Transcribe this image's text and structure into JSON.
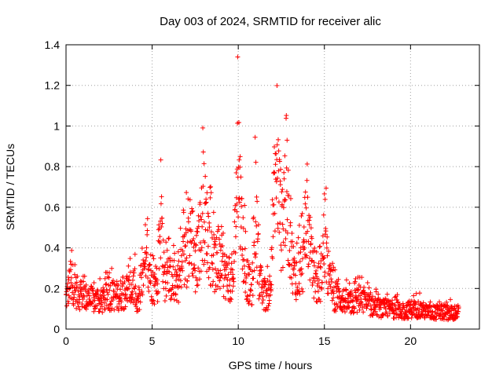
{
  "chart_data": {
    "type": "scatter",
    "title": "Day 003 of 2024, SRMTID for receiver alic",
    "xlabel": "GPS time / hours",
    "ylabel": "SRMTID / TECUs",
    "xlim": [
      0,
      24
    ],
    "ylim": [
      0,
      1.4
    ],
    "xticks": [
      0,
      5,
      10,
      15,
      20
    ],
    "xtick_labels": [
      "0",
      "5",
      "10",
      "15",
      "20"
    ],
    "yticks": [
      0,
      0.2,
      0.4,
      0.6,
      0.8,
      1.0,
      1.2,
      1.4
    ],
    "ytick_labels": [
      "0",
      "0.2",
      "0.4",
      "0.6",
      "0.8",
      "1",
      "1.2",
      "1.4"
    ],
    "grid": true,
    "marker": "+",
    "marker_color": "#ff0000",
    "envelope": {
      "x": [
        0.0,
        0.3,
        0.6,
        1.0,
        1.5,
        2.0,
        2.5,
        3.0,
        3.5,
        4.0,
        4.1,
        4.5,
        4.8,
        5.0,
        5.3,
        5.5,
        5.7,
        6.0,
        6.5,
        7.0,
        7.3,
        7.5,
        8.0,
        8.5,
        9.0,
        9.5,
        9.7,
        10.0,
        10.2,
        10.5,
        10.8,
        11.0,
        11.2,
        11.5,
        11.8,
        12.0,
        12.3,
        12.5,
        12.8,
        13.0,
        13.3,
        13.5,
        13.8,
        14.0,
        14.3,
        14.5,
        14.8,
        15.0,
        15.2,
        15.5,
        16.0,
        16.5,
        17.0,
        17.5,
        18.0,
        18.5,
        19.0,
        19.5,
        20.0,
        20.5,
        21.0,
        21.5,
        22.0,
        22.5,
        22.8
      ],
      "y": [
        0.18,
        0.3,
        0.22,
        0.2,
        0.17,
        0.16,
        0.2,
        0.2,
        0.22,
        0.25,
        0.12,
        0.3,
        0.4,
        0.28,
        0.22,
        0.75,
        0.3,
        0.3,
        0.28,
        0.45,
        0.6,
        0.35,
        0.7,
        0.4,
        0.35,
        0.3,
        0.25,
        1.1,
        0.55,
        0.3,
        0.22,
        0.75,
        0.3,
        0.2,
        0.2,
        0.6,
        0.9,
        0.55,
        0.9,
        0.5,
        0.3,
        0.35,
        0.4,
        0.65,
        0.35,
        0.25,
        0.3,
        0.55,
        0.35,
        0.2,
        0.18,
        0.15,
        0.18,
        0.15,
        0.13,
        0.12,
        0.12,
        0.1,
        0.12,
        0.12,
        0.1,
        0.1,
        0.1,
        0.1,
        0.1
      ]
    }
  }
}
